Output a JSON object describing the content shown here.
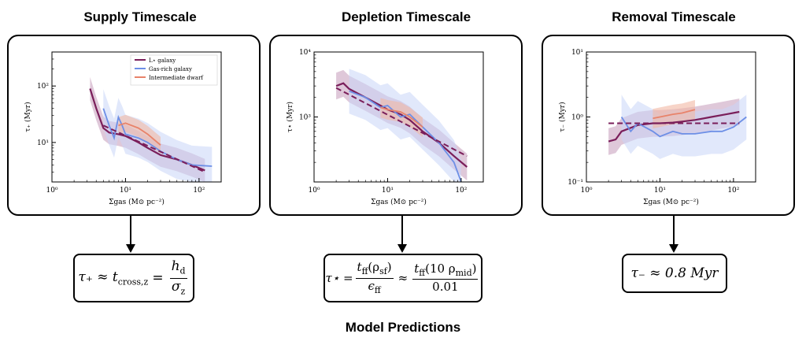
{
  "panels": [
    {
      "title": "Supply Timescale",
      "ylabel": "τ₊ (Myr)",
      "xlabel": "Σgas (M⊙ pc⁻²)",
      "yticks": [
        "10²",
        "10¹"
      ],
      "xticks": [
        "10⁰",
        "10¹",
        "10²"
      ],
      "formula": {
        "lhs": "τ₊ ≈ t",
        "lhs_sub": "cross,z",
        "eq": "=",
        "num": "h",
        "num_sub": "d",
        "den": "σ",
        "den_sub": "z"
      }
    },
    {
      "title": "Depletion Timescale",
      "ylabel": "τ⋆ (Myr)",
      "xlabel": "Σgas (M⊙ pc⁻²)",
      "yticks": [
        "10⁴",
        "10³"
      ],
      "xticks": [
        "10⁰",
        "10¹",
        "10²"
      ],
      "formula": {
        "lhs": "τ⋆ =",
        "num1": "t",
        "num1_sub": "ff",
        "num1_rest": "(ρ",
        "num1_sub2": "sf",
        "num1_end": ")",
        "den1": "ϵ",
        "den1_sub": "ff",
        "approx": "≈",
        "num2": "t",
        "num2_sub": "ff",
        "num2_rest": "(10 ρ",
        "num2_sub2": "mid",
        "num2_end": ")",
        "den2": "0.01"
      }
    },
    {
      "title": "Removal Timescale",
      "ylabel": "τ₋ (Myr)",
      "xlabel": "Σgas (M⊙ pc⁻²)",
      "yticks": [
        "10¹",
        "10⁰",
        "10⁻¹"
      ],
      "xticks": [
        "10⁰",
        "10¹",
        "10²"
      ],
      "formula": {
        "text": "τ₋ ≈ 0.8 Myr"
      }
    }
  ],
  "legend": [
    "L⋆ galaxy",
    "Gas-rich galaxy",
    "Intermediate dwarf"
  ],
  "colors": {
    "lstar": "#7a1e5a",
    "gasrich": "#6d8fe6",
    "dwarf": "#e8836a",
    "band_blue": "#c9d6f7",
    "band_purple": "#c9a3bf",
    "band_orange": "#f2b7a4"
  },
  "footer": "Model Predictions",
  "chart_data": [
    {
      "type": "line",
      "title": "Supply Timescale",
      "xlabel": "Σgas (M⊙ pc⁻²)",
      "ylabel": "τ₊ (Myr)",
      "xscale": "log",
      "yscale": "log",
      "xlim": [
        1,
        200
      ],
      "ylim": [
        2,
        400
      ],
      "series": [
        {
          "name": "L⋆ galaxy",
          "x": [
            3.3,
            4,
            5,
            6,
            8,
            10,
            15,
            20,
            30,
            50,
            80,
            120
          ],
          "y": [
            90,
            40,
            18,
            15,
            14,
            13,
            10,
            8,
            6,
            5,
            4,
            3.2
          ]
        },
        {
          "name": "Gas-rich galaxy",
          "x": [
            5,
            6,
            7,
            8,
            9,
            10,
            15,
            20,
            30,
            50,
            80,
            150
          ],
          "y": [
            40,
            20,
            12,
            28,
            20,
            14,
            12,
            10,
            7,
            5,
            4,
            3.8
          ]
        },
        {
          "name": "Intermediate dwarf",
          "x": [
            8,
            10,
            15,
            20,
            30
          ],
          "y": [
            20,
            22,
            18,
            14,
            9
          ]
        },
        {
          "name": "",
          "x": [
            5,
            120
          ],
          "y": [
            20,
            3
          ]
        }
      ]
    },
    {
      "type": "line",
      "title": "Depletion Timescale",
      "xlabel": "Σgas (M⊙ pc⁻²)",
      "ylabel": "τ⋆ (Myr)",
      "xscale": "log",
      "yscale": "log",
      "xlim": [
        1,
        200
      ],
      "ylim": [
        100,
        10000
      ],
      "series": [
        {
          "name": "L⋆ galaxy",
          "x": [
            2,
            2.5,
            3,
            5,
            8,
            10,
            15,
            20,
            30,
            50,
            80,
            120
          ],
          "y": [
            3000,
            3300,
            2700,
            2000,
            1500,
            1300,
            1100,
            900,
            600,
            400,
            250,
            170
          ]
        },
        {
          "name": "Gas-rich galaxy",
          "x": [
            3,
            5,
            8,
            10,
            15,
            20,
            30,
            50,
            80,
            100
          ],
          "y": [
            2500,
            2000,
            1400,
            1500,
            1000,
            1100,
            700,
            400,
            200,
            100
          ]
        },
        {
          "name": "Intermediate dwarf",
          "x": [
            8,
            10,
            15,
            20,
            30
          ],
          "y": [
            1400,
            1300,
            1200,
            1000,
            700
          ]
        },
        {
          "name": "",
          "x": [
            2,
            120
          ],
          "y": [
            2800,
            250
          ]
        }
      ]
    },
    {
      "type": "line",
      "title": "Removal Timescale",
      "xlabel": "Σgas (M⊙ pc⁻²)",
      "ylabel": "τ₋ (Myr)",
      "xscale": "log",
      "yscale": "log",
      "xlim": [
        1,
        200
      ],
      "ylim": [
        0.1,
        10
      ],
      "series": [
        {
          "name": "L⋆ galaxy",
          "x": [
            2,
            2.5,
            3,
            5,
            8,
            10,
            15,
            20,
            30,
            50,
            80,
            120
          ],
          "y": [
            0.42,
            0.45,
            0.6,
            0.75,
            0.8,
            0.8,
            0.82,
            0.85,
            0.9,
            1.0,
            1.1,
            1.2
          ]
        },
        {
          "name": "Gas-rich galaxy",
          "x": [
            3,
            4,
            5,
            8,
            10,
            15,
            20,
            30,
            50,
            70,
            100,
            150
          ],
          "y": [
            1.0,
            0.6,
            0.8,
            0.6,
            0.5,
            0.6,
            0.55,
            0.55,
            0.6,
            0.6,
            0.7,
            1.0
          ]
        },
        {
          "name": "Intermediate dwarf",
          "x": [
            8,
            10,
            15,
            20,
            30
          ],
          "y": [
            0.95,
            1.0,
            1.1,
            1.15,
            1.3
          ]
        },
        {
          "name": "",
          "x": [
            2,
            120
          ],
          "y": [
            0.8,
            0.8
          ]
        }
      ]
    }
  ]
}
